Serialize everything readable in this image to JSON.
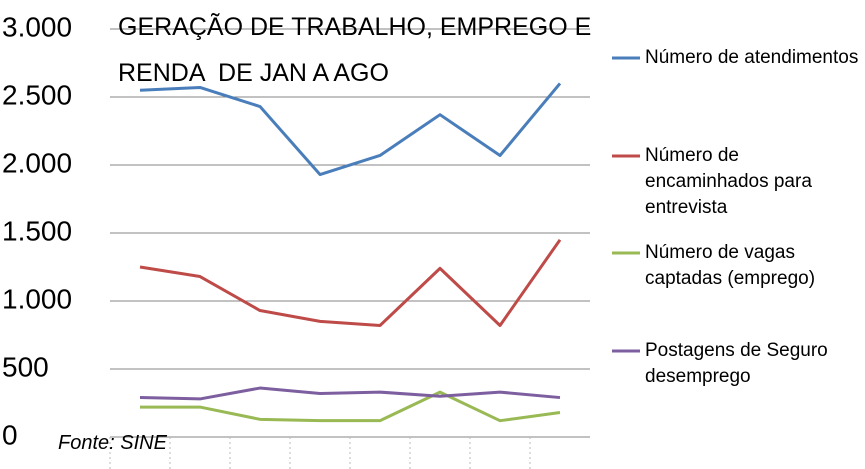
{
  "chart_data": {
    "type": "line",
    "title": "GERAÇÃO DE TRABALHO, EMPREGO E\nRENDA  DE JAN A AGO",
    "annotation": "Fonte: SINE",
    "categories": [
      null,
      null,
      null,
      null,
      null,
      null,
      null,
      null
    ],
    "series": [
      {
        "name": "Número de atendimentos",
        "color": "#4a7ebb",
        "values": [
          2550,
          2570,
          2430,
          1930,
          2070,
          2370,
          2070,
          2600
        ]
      },
      {
        "name": "Número de encaminhados para entrevista",
        "color": "#be4b48",
        "values": [
          1250,
          1180,
          930,
          850,
          820,
          1240,
          820,
          1450
        ]
      },
      {
        "name": "Número de vagas captadas (emprego)",
        "color": "#98b954",
        "values": [
          220,
          220,
          130,
          120,
          120,
          330,
          120,
          180
        ]
      },
      {
        "name": "Postagens de Seguro desemprego",
        "color": "#7d5fa0",
        "values": [
          290,
          280,
          360,
          320,
          330,
          300,
          330,
          290
        ]
      }
    ],
    "ylim": [
      0,
      3000
    ],
    "yticks": [
      0,
      500,
      {
        "value": 1000,
        "label": "1.000"
      },
      {
        "value": 1500,
        "label": "1.500"
      },
      {
        "value": 2000,
        "label": "2.000"
      },
      {
        "value": 2500,
        "label": "2.500"
      },
      {
        "value": 3000,
        "label": "3.000"
      }
    ],
    "grid": true,
    "legend": "right"
  }
}
